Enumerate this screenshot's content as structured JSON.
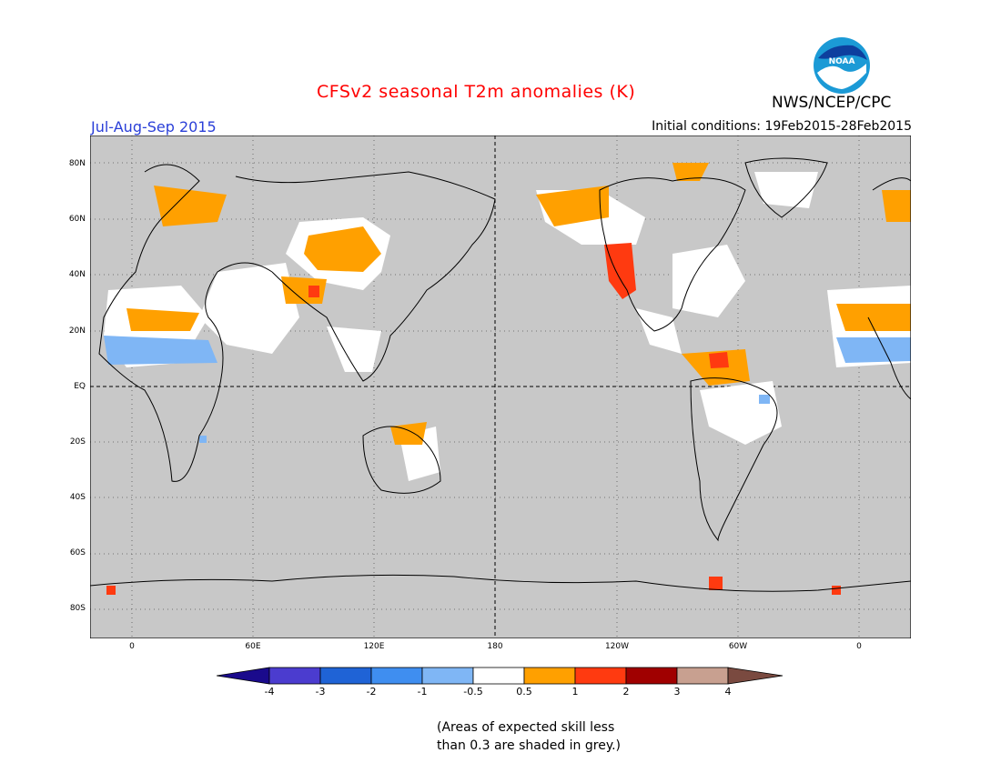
{
  "title": "CFSv2 seasonal T2m anomalies (K)",
  "season": "Jul-Aug-Sep 2015",
  "initial_conditions": "Initial conditions: 19Feb2015-28Feb2015",
  "organization": "NWS/NCEP/CPC",
  "logo_text": "NOAA",
  "lat_labels": [
    "80N",
    "60N",
    "40N",
    "20N",
    "EQ",
    "20S",
    "40S",
    "60S",
    "80S"
  ],
  "lon_labels": [
    "0",
    "60E",
    "120E",
    "180",
    "120W",
    "60W",
    "0"
  ],
  "colorbar": {
    "labels": [
      "-4",
      "-3",
      "-2",
      "-1",
      "-0.5",
      "0.5",
      "1",
      "2",
      "3",
      "4"
    ],
    "colors": [
      "#1a0a8c",
      "#4b3ccf",
      "#1f63d6",
      "#3f8ef0",
      "#7fb6f5",
      "#ffffff",
      "#ffa000",
      "#ff3a10",
      "#a00000",
      "#c8a090",
      "#7a4a40"
    ]
  },
  "note_lines": [
    "(Areas of expected skill less",
    "than 0.3 are shaded in grey.)"
  ],
  "colors": {
    "grey": "#c8c8c8",
    "title": "#ff0000",
    "season": "#2a3fd8"
  }
}
